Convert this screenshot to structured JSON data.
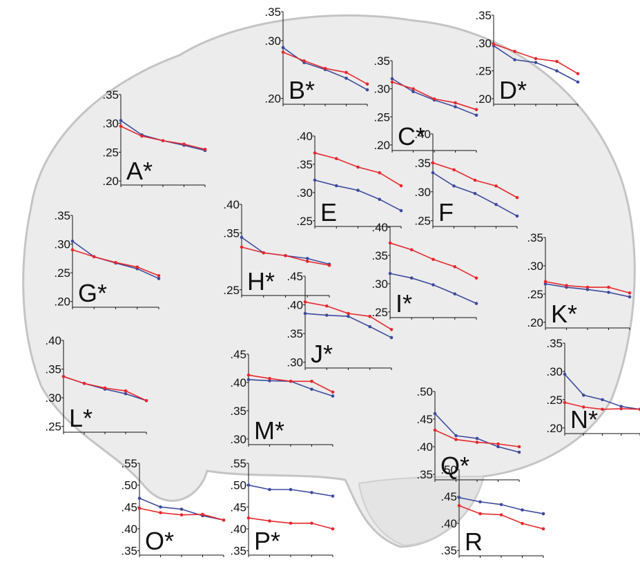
{
  "chart_data": [
    {
      "type": "line",
      "title": "A*",
      "categories": [
        null,
        null,
        null,
        null,
        null
      ],
      "ylim": [
        0.193,
        0.35
      ],
      "yticks": [
        {
          "value": 0.2,
          "label": ".20"
        },
        {
          "value": 0.25,
          "label": ".25"
        },
        {
          "value": 0.3,
          "label": ".30"
        },
        {
          "value": 0.35,
          "label": ".35"
        }
      ],
      "series": [
        {
          "color": "#3b4a9e",
          "values": [
            0.305,
            0.28,
            0.27,
            0.262,
            0.253
          ]
        },
        {
          "color": "#e8262b",
          "values": [
            0.295,
            0.278,
            0.27,
            0.264,
            0.255
          ]
        }
      ]
    },
    {
      "type": "line",
      "title": "B*",
      "categories": [
        null,
        null,
        null,
        null,
        null
      ],
      "ylim": [
        0.19,
        0.35
      ],
      "yticks": [
        {
          "value": 0.2,
          "label": ".20"
        },
        {
          "value": 0.3,
          "label": ".30"
        },
        {
          "value": 0.35,
          "label": ".35"
        }
      ],
      "series": [
        {
          "color": "#3b4a9e",
          "values": [
            0.288,
            0.262,
            0.25,
            0.235,
            0.215
          ]
        },
        {
          "color": "#e8262b",
          "values": [
            0.28,
            0.265,
            0.252,
            0.245,
            0.225
          ]
        }
      ]
    },
    {
      "type": "line",
      "title": "C*",
      "categories": [
        null,
        null,
        null,
        null,
        null
      ],
      "ylim": [
        0.19,
        0.35
      ],
      "yticks": [
        {
          "value": 0.2,
          "label": ".20"
        },
        {
          "value": 0.25,
          "label": ".25"
        },
        {
          "value": 0.3,
          "label": ".30"
        },
        {
          "value": 0.35,
          "label": ".35"
        }
      ],
      "series": [
        {
          "color": "#3b4a9e",
          "values": [
            0.318,
            0.295,
            0.28,
            0.268,
            0.253
          ]
        },
        {
          "color": "#e8262b",
          "values": [
            0.312,
            0.3,
            0.282,
            0.275,
            0.263
          ]
        }
      ]
    },
    {
      "type": "line",
      "title": "D*",
      "categories": [
        null,
        null,
        null,
        null,
        null
      ],
      "ylim": [
        0.19,
        0.35
      ],
      "yticks": [
        {
          "value": 0.2,
          "label": ".20"
        },
        {
          "value": 0.25,
          "label": ".25"
        },
        {
          "value": 0.3,
          "label": ".30"
        },
        {
          "value": 0.35,
          "label": ".35"
        }
      ],
      "series": [
        {
          "color": "#3b4a9e",
          "values": [
            0.295,
            0.27,
            0.265,
            0.25,
            0.23
          ]
        },
        {
          "color": "#e8262b",
          "values": [
            0.298,
            0.285,
            0.272,
            0.267,
            0.245
          ]
        }
      ]
    },
    {
      "type": "line",
      "title": "E",
      "categories": [
        null,
        null,
        null,
        null,
        null
      ],
      "ylim": [
        0.24,
        0.4
      ],
      "yticks": [
        {
          "value": 0.25,
          "label": ".25"
        },
        {
          "value": 0.3,
          "label": ".30"
        },
        {
          "value": 0.35,
          "label": ".35"
        },
        {
          "value": 0.4,
          "label": ".40"
        }
      ],
      "series": [
        {
          "color": "#3b4a9e",
          "values": [
            0.322,
            0.312,
            0.304,
            0.288,
            0.268
          ]
        },
        {
          "color": "#e8262b",
          "values": [
            0.37,
            0.36,
            0.345,
            0.335,
            0.312
          ]
        }
      ]
    },
    {
      "type": "line",
      "title": "F",
      "categories": [
        null,
        null,
        null,
        null,
        null
      ],
      "ylim": [
        0.24,
        0.4
      ],
      "yticks": [
        {
          "value": 0.25,
          "label": ".25"
        },
        {
          "value": 0.3,
          "label": ".30"
        },
        {
          "value": 0.35,
          "label": ".35"
        },
        {
          "value": 0.4,
          "label": ".40"
        }
      ],
      "series": [
        {
          "color": "#3b4a9e",
          "values": [
            0.333,
            0.31,
            0.297,
            0.278,
            0.258
          ]
        },
        {
          "color": "#e8262b",
          "values": [
            0.35,
            0.338,
            0.32,
            0.31,
            0.29
          ]
        }
      ]
    },
    {
      "type": "line",
      "title": "G*",
      "categories": [
        null,
        null,
        null,
        null,
        null
      ],
      "ylim": [
        0.19,
        0.35
      ],
      "yticks": [
        {
          "value": 0.2,
          "label": ".20"
        },
        {
          "value": 0.25,
          "label": ".25"
        },
        {
          "value": 0.3,
          "label": ".30"
        },
        {
          "value": 0.35,
          "label": ".35"
        }
      ],
      "series": [
        {
          "color": "#3b4a9e",
          "values": [
            0.305,
            0.278,
            0.267,
            0.257,
            0.24
          ]
        },
        {
          "color": "#e8262b",
          "values": [
            0.29,
            0.278,
            0.268,
            0.26,
            0.245
          ]
        }
      ]
    },
    {
      "type": "line",
      "title": "H*",
      "categories": [
        null,
        null,
        null,
        null,
        null
      ],
      "ylim": [
        0.24,
        0.4
      ],
      "yticks": [
        {
          "value": 0.25,
          "label": ".25"
        },
        {
          "value": 0.35,
          "label": ".35"
        },
        {
          "value": 0.4,
          "label": ".40"
        }
      ],
      "series": [
        {
          "color": "#3b4a9e",
          "values": [
            0.342,
            0.315,
            0.31,
            0.305,
            0.295
          ]
        },
        {
          "color": "#e8262b",
          "values": [
            0.325,
            0.315,
            0.31,
            0.3,
            0.293
          ]
        }
      ]
    },
    {
      "type": "line",
      "title": "I*",
      "categories": [
        null,
        null,
        null,
        null,
        null
      ],
      "ylim": [
        0.24,
        0.4
      ],
      "yticks": [
        {
          "value": 0.25,
          "label": ".25"
        },
        {
          "value": 0.3,
          "label": ".30"
        },
        {
          "value": 0.35,
          "label": ".35"
        },
        {
          "value": 0.4,
          "label": ".40"
        }
      ],
      "series": [
        {
          "color": "#3b4a9e",
          "values": [
            0.318,
            0.31,
            0.298,
            0.282,
            0.265
          ]
        },
        {
          "color": "#e8262b",
          "values": [
            0.372,
            0.36,
            0.343,
            0.33,
            0.31
          ]
        }
      ]
    },
    {
      "type": "line",
      "title": "J*",
      "categories": [
        null,
        null,
        null,
        null,
        null
      ],
      "ylim": [
        0.29,
        0.45
      ],
      "yticks": [
        {
          "value": 0.3,
          "label": ".30"
        },
        {
          "value": 0.35,
          "label": ".35"
        },
        {
          "value": 0.4,
          "label": ".40"
        },
        {
          "value": 0.45,
          "label": ".45"
        }
      ],
      "series": [
        {
          "color": "#3b4a9e",
          "values": [
            0.385,
            0.382,
            0.38,
            0.362,
            0.343
          ]
        },
        {
          "color": "#e8262b",
          "values": [
            0.405,
            0.398,
            0.385,
            0.38,
            0.357
          ]
        }
      ]
    },
    {
      "type": "line",
      "title": "K*",
      "categories": [
        null,
        null,
        null,
        null,
        null
      ],
      "ylim": [
        0.19,
        0.35
      ],
      "yticks": [
        {
          "value": 0.2,
          "label": ".20"
        },
        {
          "value": 0.25,
          "label": ".25"
        },
        {
          "value": 0.3,
          "label": ".30"
        },
        {
          "value": 0.35,
          "label": ".35"
        }
      ],
      "series": [
        {
          "color": "#3b4a9e",
          "values": [
            0.268,
            0.262,
            0.258,
            0.253,
            0.245
          ]
        },
        {
          "color": "#e8262b",
          "values": [
            0.272,
            0.265,
            0.262,
            0.262,
            0.252
          ]
        }
      ]
    },
    {
      "type": "line",
      "title": "L*",
      "categories": [
        null,
        null,
        null,
        null,
        null
      ],
      "ylim": [
        0.24,
        0.4
      ],
      "yticks": [
        {
          "value": 0.25,
          "label": ".25"
        },
        {
          "value": 0.3,
          "label": ".30"
        },
        {
          "value": 0.35,
          "label": ".35"
        },
        {
          "value": 0.4,
          "label": ".40"
        }
      ],
      "series": [
        {
          "color": "#3b4a9e",
          "values": [
            0.337,
            0.325,
            0.315,
            0.307,
            0.295
          ]
        },
        {
          "color": "#e8262b",
          "values": [
            0.337,
            0.325,
            0.317,
            0.312,
            0.295
          ]
        }
      ]
    },
    {
      "type": "line",
      "title": "M*",
      "categories": [
        null,
        null,
        null,
        null,
        null
      ],
      "ylim": [
        0.29,
        0.45
      ],
      "yticks": [
        {
          "value": 0.3,
          "label": ".30"
        },
        {
          "value": 0.35,
          "label": ".35"
        },
        {
          "value": 0.4,
          "label": ".40"
        },
        {
          "value": 0.45,
          "label": ".45"
        }
      ],
      "series": [
        {
          "color": "#3b4a9e",
          "values": [
            0.405,
            0.403,
            0.402,
            0.388,
            0.376
          ]
        },
        {
          "color": "#e8262b",
          "values": [
            0.413,
            0.407,
            0.402,
            0.402,
            0.383
          ]
        }
      ]
    },
    {
      "type": "line",
      "title": "N*",
      "categories": [
        null,
        null,
        null,
        null,
        null
      ],
      "ylim": [
        0.19,
        0.35
      ],
      "yticks": [
        {
          "value": 0.2,
          "label": ".20"
        },
        {
          "value": 0.25,
          "label": ".25"
        },
        {
          "value": 0.3,
          "label": ".30"
        },
        {
          "value": 0.35,
          "label": ".35"
        }
      ],
      "series": [
        {
          "color": "#3b4a9e",
          "values": [
            0.295,
            0.258,
            0.25,
            0.238,
            0.233
          ]
        },
        {
          "color": "#e8262b",
          "values": [
            0.245,
            0.237,
            0.233,
            0.234,
            0.233
          ]
        }
      ]
    },
    {
      "type": "line",
      "title": "O*",
      "categories": [
        null,
        null,
        null,
        null,
        null
      ],
      "ylim": [
        0.34,
        0.55
      ],
      "yticks": [
        {
          "value": 0.35,
          "label": ".35"
        },
        {
          "value": 0.4,
          "label": ".40"
        },
        {
          "value": 0.45,
          "label": ".45"
        },
        {
          "value": 0.5,
          "label": ".50"
        },
        {
          "value": 0.55,
          "label": ".55"
        }
      ],
      "series": [
        {
          "color": "#3b4a9e",
          "values": [
            0.47,
            0.45,
            0.445,
            0.43,
            0.42
          ]
        },
        {
          "color": "#e8262b",
          "values": [
            0.447,
            0.437,
            0.432,
            0.433,
            0.42
          ]
        }
      ]
    },
    {
      "type": "line",
      "title": "P*",
      "categories": [
        null,
        null,
        null,
        null,
        null
      ],
      "ylim": [
        0.34,
        0.55
      ],
      "yticks": [
        {
          "value": 0.35,
          "label": ".35"
        },
        {
          "value": 0.4,
          "label": ".40"
        },
        {
          "value": 0.45,
          "label": ".45"
        },
        {
          "value": 0.5,
          "label": ".50"
        },
        {
          "value": 0.55,
          "label": ".55"
        }
      ],
      "series": [
        {
          "color": "#3b4a9e",
          "values": [
            0.5,
            0.49,
            0.49,
            0.483,
            0.475
          ]
        },
        {
          "color": "#e8262b",
          "values": [
            0.425,
            0.418,
            0.413,
            0.413,
            0.4
          ]
        }
      ]
    },
    {
      "type": "line",
      "title": "Q*",
      "categories": [
        null,
        null,
        null,
        null,
        null
      ],
      "ylim": [
        0.34,
        0.5
      ],
      "yticks": [
        {
          "value": 0.35,
          "label": ".35"
        },
        {
          "value": 0.4,
          "label": ".40"
        },
        {
          "value": 0.45,
          "label": ".45"
        },
        {
          "value": 0.5,
          "label": ".50"
        }
      ],
      "series": [
        {
          "color": "#3b4a9e",
          "values": [
            0.46,
            0.42,
            0.415,
            0.4,
            0.39
          ]
        },
        {
          "color": "#e8262b",
          "values": [
            0.43,
            0.413,
            0.408,
            0.405,
            0.4
          ]
        }
      ]
    },
    {
      "type": "line",
      "title": "R",
      "categories": [
        null,
        null,
        null,
        null,
        null
      ],
      "ylim": [
        0.34,
        0.5
      ],
      "yticks": [
        {
          "value": 0.35,
          "label": ".35"
        },
        {
          "value": 0.4,
          "label": ".40"
        },
        {
          "value": 0.45,
          "label": ".45"
        },
        {
          "value": 0.5,
          "label": ".50"
        }
      ],
      "series": [
        {
          "color": "#3b4a9e",
          "values": [
            0.448,
            0.44,
            0.435,
            0.425,
            0.418
          ]
        },
        {
          "color": "#e8262b",
          "values": [
            0.433,
            0.418,
            0.416,
            0.4,
            0.39
          ]
        }
      ]
    }
  ]
}
